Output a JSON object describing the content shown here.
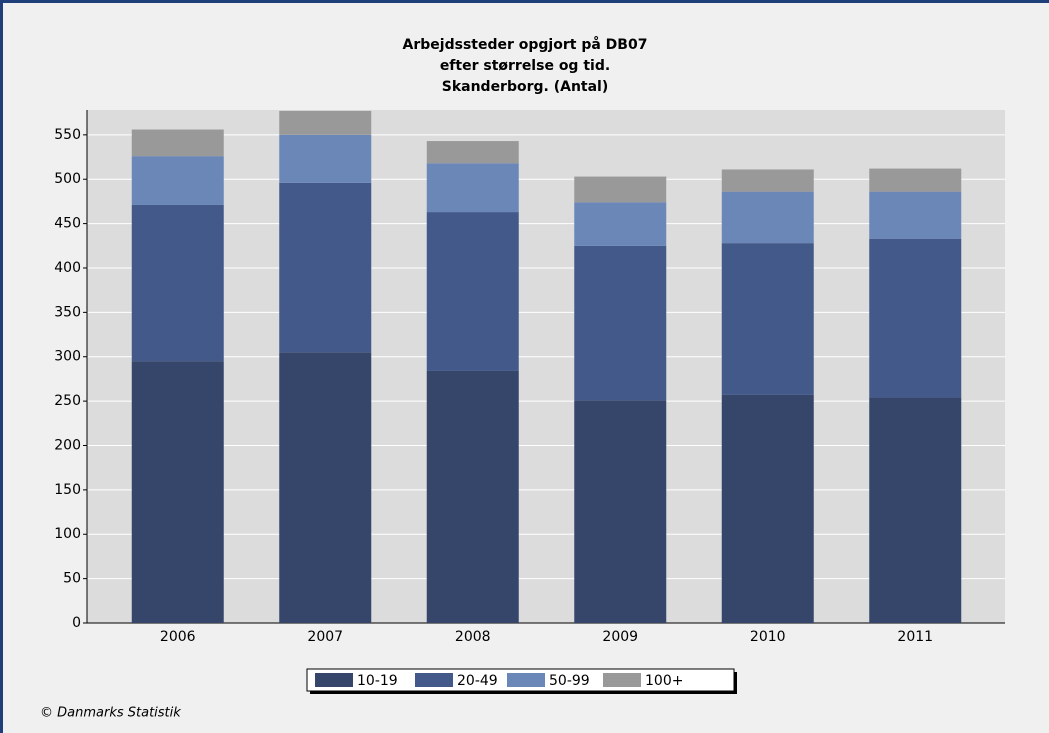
{
  "chart_data": {
    "type": "stacked_bar",
    "title": [
      "Arbejdssteder opgjort på DB07",
      "efter størrelse og tid.",
      "Skanderborg. (Antal)"
    ],
    "categories": [
      "2006",
      "2007",
      "2008",
      "2009",
      "2010",
      "2011"
    ],
    "series": [
      {
        "name": "10-19",
        "color": "#36466b",
        "values": [
          295,
          305,
          284,
          251,
          257,
          254
        ]
      },
      {
        "name": "20-49",
        "color": "#42598a",
        "values": [
          176,
          191,
          179,
          174,
          171,
          179
        ]
      },
      {
        "name": "50-99",
        "color": "#6b87b8",
        "values": [
          55,
          54,
          55,
          49,
          58,
          53
        ]
      },
      {
        "name": "100+",
        "color": "#999999",
        "values": [
          30,
          27,
          25,
          29,
          25,
          26
        ]
      }
    ],
    "ylim": [
      0,
      578
    ],
    "yticks": [
      0,
      50,
      100,
      150,
      200,
      250,
      300,
      350,
      400,
      450,
      500,
      550
    ],
    "grid": true,
    "legend": "bottom",
    "source": "© Danmarks Statistik"
  }
}
